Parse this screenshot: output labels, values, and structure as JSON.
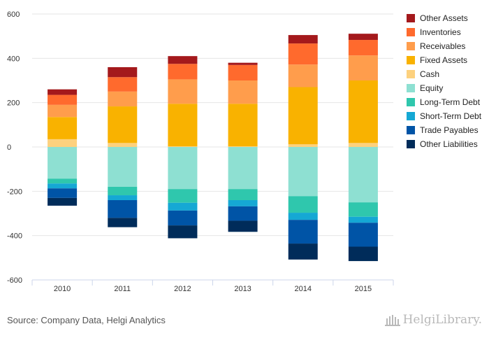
{
  "chart_data": {
    "type": "bar",
    "stacked": true,
    "categories": [
      "2010",
      "2011",
      "2012",
      "2013",
      "2014",
      "2015"
    ],
    "ylim": [
      -600,
      600
    ],
    "yticks": [
      -600,
      -400,
      -200,
      0,
      200,
      400,
      600
    ],
    "grid": true,
    "legend_position": "right",
    "assets": [
      {
        "name": "Cash",
        "color": "#fdd17e",
        "values": [
          35,
          18,
          3,
          3,
          12,
          18
        ]
      },
      {
        "name": "Fixed Assets",
        "color": "#f9b200",
        "values": [
          100,
          165,
          192,
          192,
          258,
          282
        ]
      },
      {
        "name": "Receivables",
        "color": "#ff9d4c",
        "values": [
          55,
          67,
          110,
          105,
          102,
          113
        ]
      },
      {
        "name": "Inventories",
        "color": "#ff6a2d",
        "values": [
          45,
          65,
          70,
          70,
          95,
          70
        ]
      },
      {
        "name": "Other Assets",
        "color": "#a4191c",
        "values": [
          25,
          45,
          35,
          10,
          38,
          28
        ]
      }
    ],
    "liabilities": [
      {
        "name": "Equity",
        "color": "#8ee0d2",
        "values": [
          -143,
          -180,
          -190,
          -190,
          -222,
          -250
        ]
      },
      {
        "name": "Long-Term Debt",
        "color": "#2fc7ad",
        "values": [
          -22,
          -38,
          -62,
          -50,
          -75,
          -65
        ]
      },
      {
        "name": "Short-Term Debt",
        "color": "#15a8d4",
        "values": [
          -22,
          -22,
          -35,
          -28,
          -32,
          -27
        ]
      },
      {
        "name": "Trade Payables",
        "color": "#0054a6",
        "values": [
          -43,
          -80,
          -67,
          -65,
          -107,
          -108
        ]
      },
      {
        "name": "Other Liabilities",
        "color": "#002c5a",
        "values": [
          -35,
          -42,
          -58,
          -50,
          -72,
          -65
        ]
      }
    ],
    "legend_order": [
      "Other Assets",
      "Inventories",
      "Receivables",
      "Fixed Assets",
      "Cash",
      "Equity",
      "Long-Term Debt",
      "Short-Term Debt",
      "Trade Payables",
      "Other Liabilities"
    ]
  },
  "footer": {
    "source": "Source: Company Data, Helgi Analytics",
    "brand": "HelgiLibrary."
  }
}
